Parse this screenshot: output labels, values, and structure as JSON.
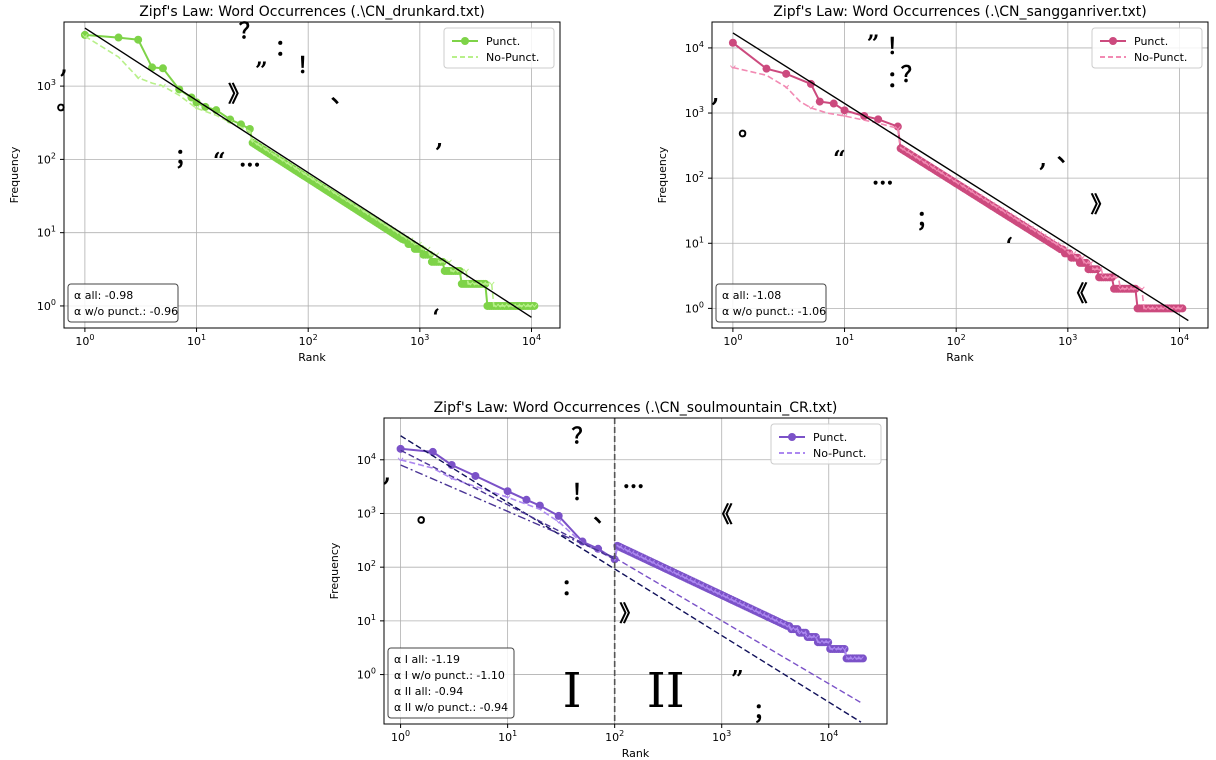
{
  "chart_data": [
    {
      "type": "line",
      "title": "Zipf's Law: Word Occurrences (.\\CN_drunkard.txt)",
      "xlabel": "Rank",
      "ylabel": "Frequency",
      "xscale": "log",
      "yscale": "log",
      "xlim": [
        0.65,
        18000
      ],
      "ylim": [
        0.5,
        7500
      ],
      "grid": true,
      "legend_position": "top-right",
      "x_ticks": [
        "10^0",
        "10^1",
        "10^2",
        "10^3",
        "10^4"
      ],
      "y_ticks": [
        "10^0",
        "10^1",
        "10^2",
        "10^3"
      ],
      "colors": {
        "punct": "#7ed348",
        "nopunct": "#b8f08a",
        "fit": "#000000"
      },
      "series": [
        {
          "name": "Punct.",
          "style": "solid-markers",
          "total": 5000,
          "exponent": -0.98,
          "head": [
            [
              1,
              5000
            ],
            [
              2,
              4600
            ],
            [
              3,
              4300
            ],
            [
              4,
              1800
            ],
            [
              5,
              1750
            ],
            [
              7,
              900
            ],
            [
              9,
              700
            ],
            [
              10,
              600
            ],
            [
              12,
              520
            ],
            [
              15,
              470
            ],
            [
              20,
              350
            ],
            [
              25,
              300
            ],
            [
              30,
              260
            ]
          ]
        },
        {
          "name": "No-Punct.",
          "style": "dashed-markers",
          "total": 4900,
          "exponent": -0.96,
          "head": [
            [
              1,
              4800
            ],
            [
              2,
              2500
            ],
            [
              3,
              1300
            ],
            [
              4,
              1100
            ],
            [
              5,
              1000
            ],
            [
              7,
              750
            ],
            [
              10,
              500
            ],
            [
              15,
              400
            ],
            [
              20,
              320
            ],
            [
              30,
              240
            ]
          ]
        }
      ],
      "fit": {
        "from": [
          1,
          6200
        ],
        "to": [
          10000,
          0.7
        ]
      },
      "stats": [
        "α all: -0.98",
        "α w/o punct.: -0.96"
      ],
      "annotations": [
        {
          "text": ",",
          "x": 0.65,
          "y": 1500
        },
        {
          "text": "。",
          "x": 0.7,
          "y": 480
        },
        {
          "text": "？",
          "x": 30,
          "y": 4500
        },
        {
          "text": "”",
          "x": 38,
          "y": 1300
        },
        {
          "text": "：",
          "x": 63,
          "y": 2600
        },
        {
          "text": "！",
          "x": 100,
          "y": 1500
        },
        {
          "text": "》",
          "x": 24,
          "y": 620
        },
        {
          "text": "、",
          "x": 200,
          "y": 600
        },
        {
          "text": "；",
          "x": 8,
          "y": 85
        },
        {
          "text": "“",
          "x": 16,
          "y": 75
        },
        {
          "text": "…",
          "x": 30,
          "y": 80
        },
        {
          "text": ",",
          "x": 1500,
          "y": 150
        },
        {
          "text": "‘",
          "x": 1400,
          "y": 0.55
        }
      ]
    },
    {
      "type": "line",
      "title": "Zipf's Law: Word Occurrences (.\\CN_sangganriver.txt)",
      "xlabel": "Rank",
      "ylabel": "Frequency",
      "xscale": "log",
      "yscale": "log",
      "xlim": [
        0.65,
        18000
      ],
      "ylim": [
        0.5,
        25000
      ],
      "grid": true,
      "legend_position": "top-right",
      "x_ticks": [
        "10^0",
        "10^1",
        "10^2",
        "10^3",
        "10^4"
      ],
      "y_ticks": [
        "10^0",
        "10^1",
        "10^2",
        "10^3",
        "10^4"
      ],
      "colors": {
        "punct": "#cc4a7e",
        "nopunct": "#f28ab3",
        "fit": "#000000"
      },
      "series": [
        {
          "name": "Punct.",
          "style": "solid-markers",
          "total": 12000,
          "exponent": -1.08,
          "head": [
            [
              1,
              12000
            ],
            [
              2,
              4800
            ],
            [
              3,
              4000
            ],
            [
              5,
              2800
            ],
            [
              6,
              1500
            ],
            [
              8,
              1400
            ],
            [
              10,
              1100
            ],
            [
              15,
              900
            ],
            [
              20,
              800
            ],
            [
              30,
              620
            ]
          ]
        },
        {
          "name": "No-Punct.",
          "style": "dashed-markers",
          "total": 11500,
          "exponent": -1.06,
          "head": [
            [
              1,
              5000
            ],
            [
              2,
              3800
            ],
            [
              3,
              2500
            ],
            [
              4,
              1500
            ],
            [
              5,
              1200
            ],
            [
              7,
              1000
            ],
            [
              10,
              900
            ],
            [
              20,
              700
            ],
            [
              30,
              580
            ]
          ]
        }
      ],
      "fit": {
        "from": [
          1,
          17000
        ],
        "to": [
          12000,
          0.65
        ]
      },
      "stats": [
        "α all: -1.08",
        "α w/o punct.: -1.06"
      ],
      "annotations": [
        {
          "text": ",",
          "x": 0.7,
          "y": 1500
        },
        {
          "text": "。",
          "x": 1.4,
          "y": 450
        },
        {
          "text": "”",
          "x": 18,
          "y": 9000
        },
        {
          "text": "！",
          "x": 30,
          "y": 8000
        },
        {
          "text": "：",
          "x": 30,
          "y": 2500
        },
        {
          "text": "？",
          "x": 40,
          "y": 3000
        },
        {
          "text": "“",
          "x": 9,
          "y": 150
        },
        {
          "text": "…",
          "x": 22,
          "y": 80
        },
        {
          "text": "；",
          "x": 55,
          "y": 18
        },
        {
          "text": ",",
          "x": 600,
          "y": 150
        },
        {
          "text": "、",
          "x": 1000,
          "y": 180
        },
        {
          "text": "‘",
          "x": 300,
          "y": 7
        },
        {
          "text": "》",
          "x": 2000,
          "y": 30
        },
        {
          "text": "《",
          "x": 1200,
          "y": 1.3
        }
      ]
    },
    {
      "type": "line",
      "title": "Zipf's Law: Word Occurrences (.\\CN_soulmountain_CR.txt)",
      "xlabel": "Rank",
      "ylabel": "Frequency",
      "xscale": "log",
      "yscale": "log",
      "xlim": [
        0.7,
        35000
      ],
      "ylim": [
        0.12,
        60000
      ],
      "grid": true,
      "legend_position": "top-right",
      "x_ticks": [
        "10^0",
        "10^1",
        "10^2",
        "10^3",
        "10^4"
      ],
      "y_ticks": [
        "10^0",
        "10^1",
        "10^2",
        "10^3",
        "10^4"
      ],
      "colors": {
        "punct": "#7b52c8",
        "nopunct": "#ac88f0",
        "fit": "#10105a",
        "fit2": "#4b3596",
        "divider": "#555555"
      },
      "series": [
        {
          "name": "Punct.",
          "style": "solid-markers",
          "total": 20000,
          "exponent": -0.94,
          "head": [
            [
              1,
              16000
            ],
            [
              2,
              14000
            ],
            [
              3,
              8000
            ],
            [
              5,
              5000
            ],
            [
              10,
              2600
            ],
            [
              15,
              1800
            ],
            [
              20,
              1400
            ],
            [
              30,
              900
            ],
            [
              50,
              300
            ],
            [
              70,
              220
            ],
            [
              100,
              140
            ]
          ]
        },
        {
          "name": "No-Punct.",
          "style": "dashed-markers",
          "total": 20000,
          "exponent": -0.94,
          "head": [
            [
              1,
              10000
            ],
            [
              2,
              7000
            ],
            [
              3,
              4500
            ],
            [
              5,
              3200
            ],
            [
              10,
              2000
            ],
            [
              20,
              1200
            ],
            [
              30,
              700
            ],
            [
              50,
              280
            ],
            [
              100,
              140
            ]
          ]
        }
      ],
      "fits": [
        {
          "from": [
            1,
            28000
          ],
          "to": [
            20000,
            0.13
          ],
          "style": "dashed",
          "color": "#10105a"
        },
        {
          "from": [
            1,
            8000
          ],
          "to": [
            100,
            150
          ],
          "style": "dashdot",
          "color": "#4b3596"
        },
        {
          "from": [
            1,
            15000
          ],
          "to": [
            100,
            140
          ],
          "style": "dashed",
          "color": "#4b3596"
        },
        {
          "from": [
            100,
            150
          ],
          "to": [
            20000,
            0.3
          ],
          "style": "dashed",
          "color": "#7b52c8"
        }
      ],
      "divider_x": 100,
      "regions": [
        {
          "text": "I",
          "x": 40,
          "y": 0.25
        },
        {
          "text": "II",
          "x": 300,
          "y": 0.25
        }
      ],
      "stats": [
        "α I all: -1.19",
        "α I w/o punct.: -1.10",
        "α II all: -0.94",
        "α II w/o punct.: -0.94"
      ],
      "annotations": [
        {
          "text": ",",
          "x": 0.75,
          "y": 4000
        },
        {
          "text": "。",
          "x": 1.8,
          "y": 700
        },
        {
          "text": "？",
          "x": 50,
          "y": 20000
        },
        {
          "text": "！",
          "x": 50,
          "y": 1800
        },
        {
          "text": "…",
          "x": 150,
          "y": 3000
        },
        {
          "text": "、",
          "x": 80,
          "y": 700
        },
        {
          "text": "：",
          "x": 40,
          "y": 30
        },
        {
          "text": "《",
          "x": 1000,
          "y": 700
        },
        {
          "text": "》",
          "x": 140,
          "y": 10
        },
        {
          "text": "”",
          "x": 1400,
          "y": 0.6
        },
        {
          "text": "；",
          "x": 2500,
          "y": 0.15
        }
      ]
    }
  ]
}
